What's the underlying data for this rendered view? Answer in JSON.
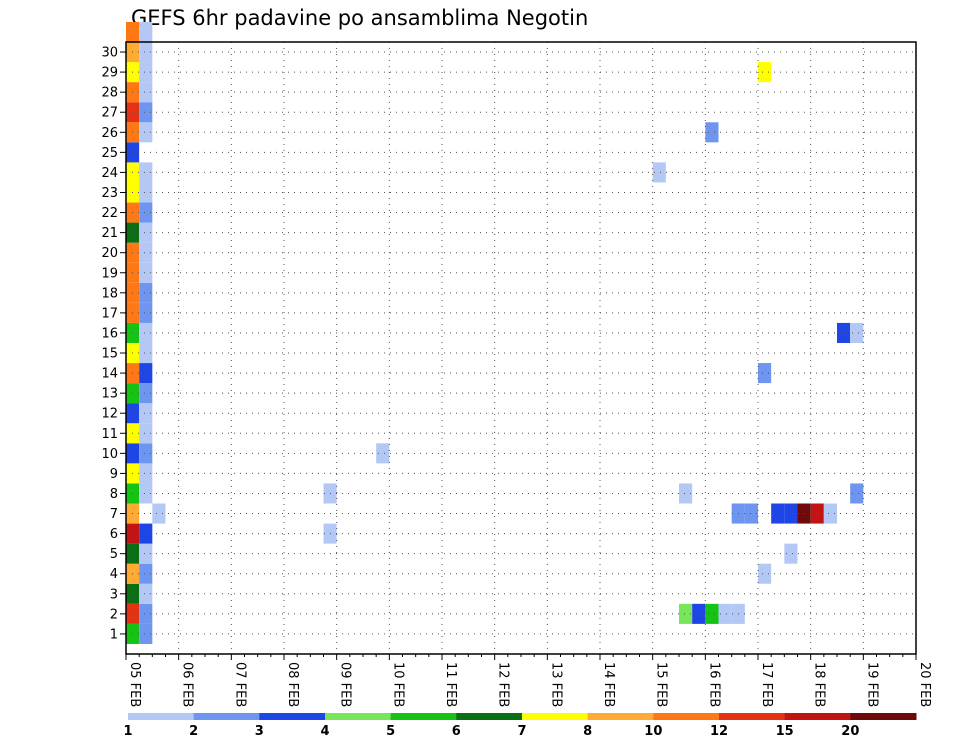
{
  "chart_data": {
    "type": "heatmap",
    "title": "GEFS 6hr padavine po ansamblima Negotin",
    "xlabel": "",
    "ylabel": "",
    "x_range": [
      "05 FEB",
      "20 FEB"
    ],
    "x_ticks": [
      "05 FEB",
      "06 FEB",
      "07 FEB",
      "08 FEB",
      "09 FEB",
      "10 FEB",
      "11 FEB",
      "12 FEB",
      "13 FEB",
      "14 FEB",
      "15 FEB",
      "16 FEB",
      "17 FEB",
      "18 FEB",
      "19 FEB",
      "20 FEB"
    ],
    "y_range": [
      0,
      30
    ],
    "y_ticks": [
      1,
      2,
      3,
      4,
      5,
      6,
      7,
      8,
      9,
      10,
      11,
      12,
      13,
      14,
      15,
      16,
      17,
      18,
      19,
      20,
      21,
      22,
      23,
      24,
      25,
      26,
      27,
      28,
      29,
      30
    ],
    "grid": true,
    "colorbar": {
      "placement": "bottom",
      "levels": [
        1,
        2,
        3,
        4,
        5,
        6,
        7,
        8,
        10,
        12,
        15,
        20
      ],
      "labels": [
        "1",
        "2",
        "3",
        "4",
        "5",
        "6",
        "7",
        "8",
        "10",
        "12",
        "15",
        "20"
      ],
      "colors": [
        "#b4c8f5",
        "#6e96f0",
        "#1e46e6",
        "#78e65a",
        "#14c314",
        "#0a6e14",
        "#ffff00",
        "#ffaa32",
        "#ff7814",
        "#e63214",
        "#c31414",
        "#6e0a0a"
      ]
    },
    "cells": [
      {
        "m": 1,
        "t": "05 FEB 06Z",
        "v": 5
      },
      {
        "m": 1,
        "t": "05 FEB 12Z",
        "v": 2
      },
      {
        "m": 2,
        "t": "05 FEB 06Z",
        "v": 12
      },
      {
        "m": 2,
        "t": "05 FEB 12Z",
        "v": 2
      },
      {
        "m": 3,
        "t": "05 FEB 06Z",
        "v": 6
      },
      {
        "m": 3,
        "t": "05 FEB 12Z",
        "v": 1
      },
      {
        "m": 4,
        "t": "05 FEB 06Z",
        "v": 8
      },
      {
        "m": 4,
        "t": "05 FEB 12Z",
        "v": 2
      },
      {
        "m": 5,
        "t": "05 FEB 06Z",
        "v": 6
      },
      {
        "m": 5,
        "t": "05 FEB 12Z",
        "v": 1
      },
      {
        "m": 6,
        "t": "05 FEB 06Z",
        "v": 15
      },
      {
        "m": 6,
        "t": "05 FEB 12Z",
        "v": 3
      },
      {
        "m": 7,
        "t": "05 FEB 06Z",
        "v": 8
      },
      {
        "m": 7,
        "t": "05 FEB 18Z",
        "v": 1
      },
      {
        "m": 8,
        "t": "05 FEB 06Z",
        "v": 5
      },
      {
        "m": 8,
        "t": "05 FEB 12Z",
        "v": 1
      },
      {
        "m": 9,
        "t": "05 FEB 06Z",
        "v": 7
      },
      {
        "m": 9,
        "t": "05 FEB 12Z",
        "v": 1
      },
      {
        "m": 10,
        "t": "05 FEB 06Z",
        "v": 3
      },
      {
        "m": 10,
        "t": "05 FEB 12Z",
        "v": 2
      },
      {
        "m": 11,
        "t": "05 FEB 06Z",
        "v": 7
      },
      {
        "m": 11,
        "t": "05 FEB 12Z",
        "v": 1
      },
      {
        "m": 12,
        "t": "05 FEB 06Z",
        "v": 3
      },
      {
        "m": 12,
        "t": "05 FEB 12Z",
        "v": 1
      },
      {
        "m": 13,
        "t": "05 FEB 06Z",
        "v": 5
      },
      {
        "m": 13,
        "t": "05 FEB 12Z",
        "v": 2
      },
      {
        "m": 14,
        "t": "05 FEB 06Z",
        "v": 10
      },
      {
        "m": 14,
        "t": "05 FEB 12Z",
        "v": 3
      },
      {
        "m": 15,
        "t": "05 FEB 06Z",
        "v": 7
      },
      {
        "m": 15,
        "t": "05 FEB 12Z",
        "v": 1
      },
      {
        "m": 16,
        "t": "05 FEB 06Z",
        "v": 5
      },
      {
        "m": 16,
        "t": "05 FEB 12Z",
        "v": 1
      },
      {
        "m": 17,
        "t": "05 FEB 06Z",
        "v": 10
      },
      {
        "m": 17,
        "t": "05 FEB 12Z",
        "v": 2
      },
      {
        "m": 18,
        "t": "05 FEB 06Z",
        "v": 10
      },
      {
        "m": 18,
        "t": "05 FEB 12Z",
        "v": 2
      },
      {
        "m": 19,
        "t": "05 FEB 06Z",
        "v": 10
      },
      {
        "m": 19,
        "t": "05 FEB 12Z",
        "v": 1
      },
      {
        "m": 20,
        "t": "05 FEB 06Z",
        "v": 10
      },
      {
        "m": 20,
        "t": "05 FEB 12Z",
        "v": 1
      },
      {
        "m": 21,
        "t": "05 FEB 06Z",
        "v": 6
      },
      {
        "m": 21,
        "t": "05 FEB 12Z",
        "v": 1
      },
      {
        "m": 22,
        "t": "05 FEB 06Z",
        "v": 10
      },
      {
        "m": 22,
        "t": "05 FEB 12Z",
        "v": 2
      },
      {
        "m": 23,
        "t": "05 FEB 06Z",
        "v": 7
      },
      {
        "m": 23,
        "t": "05 FEB 12Z",
        "v": 1
      },
      {
        "m": 24,
        "t": "05 FEB 06Z",
        "v": 7
      },
      {
        "m": 24,
        "t": "05 FEB 12Z",
        "v": 1
      },
      {
        "m": 25,
        "t": "05 FEB 06Z",
        "v": 3
      },
      {
        "m": 26,
        "t": "05 FEB 06Z",
        "v": 10
      },
      {
        "m": 26,
        "t": "05 FEB 12Z",
        "v": 1
      },
      {
        "m": 27,
        "t": "05 FEB 06Z",
        "v": 12
      },
      {
        "m": 27,
        "t": "05 FEB 12Z",
        "v": 2
      },
      {
        "m": 28,
        "t": "05 FEB 06Z",
        "v": 10
      },
      {
        "m": 28,
        "t": "05 FEB 12Z",
        "v": 1
      },
      {
        "m": 29,
        "t": "05 FEB 06Z",
        "v": 7
      },
      {
        "m": 29,
        "t": "05 FEB 12Z",
        "v": 1
      },
      {
        "m": 30,
        "t": "05 FEB 06Z",
        "v": 8
      },
      {
        "m": 30,
        "t": "05 FEB 12Z",
        "v": 1
      },
      {
        "m": 31,
        "t": "05 FEB 06Z",
        "v": 10
      },
      {
        "m": 31,
        "t": "05 FEB 12Z",
        "v": 1
      },
      {
        "m": 6,
        "t": "09 FEB 00Z",
        "v": 1
      },
      {
        "m": 8,
        "t": "09 FEB 00Z",
        "v": 1
      },
      {
        "m": 10,
        "t": "10 FEB 00Z",
        "v": 1
      },
      {
        "m": 24,
        "t": "15 FEB 06Z",
        "v": 1
      },
      {
        "m": 26,
        "t": "16 FEB 06Z",
        "v": 2
      },
      {
        "m": 29,
        "t": "17 FEB 06Z",
        "v": 7
      },
      {
        "m": 14,
        "t": "17 FEB 06Z",
        "v": 2
      },
      {
        "m": 16,
        "t": "18 FEB 18Z",
        "v": 3
      },
      {
        "m": 16,
        "t": "19 FEB 00Z",
        "v": 1
      },
      {
        "m": 8,
        "t": "15 FEB 18Z",
        "v": 1
      },
      {
        "m": 8,
        "t": "19 FEB 00Z",
        "v": 2
      },
      {
        "m": 7,
        "t": "16 FEB 18Z",
        "v": 2
      },
      {
        "m": 7,
        "t": "17 FEB 00Z",
        "v": 2
      },
      {
        "m": 7,
        "t": "17 FEB 12Z",
        "v": 3
      },
      {
        "m": 7,
        "t": "17 FEB 18Z",
        "v": 3
      },
      {
        "m": 7,
        "t": "18 FEB 00Z",
        "v": 20
      },
      {
        "m": 7,
        "t": "18 FEB 06Z",
        "v": 15
      },
      {
        "m": 7,
        "t": "18 FEB 12Z",
        "v": 1
      },
      {
        "m": 5,
        "t": "17 FEB 18Z",
        "v": 1
      },
      {
        "m": 4,
        "t": "17 FEB 06Z",
        "v": 1
      },
      {
        "m": 2,
        "t": "15 FEB 18Z",
        "v": 4
      },
      {
        "m": 2,
        "t": "16 FEB 00Z",
        "v": 3
      },
      {
        "m": 2,
        "t": "16 FEB 06Z",
        "v": 5
      },
      {
        "m": 2,
        "t": "16 FEB 12Z",
        "v": 1
      },
      {
        "m": 2,
        "t": "16 FEB 18Z",
        "v": 1
      }
    ]
  }
}
